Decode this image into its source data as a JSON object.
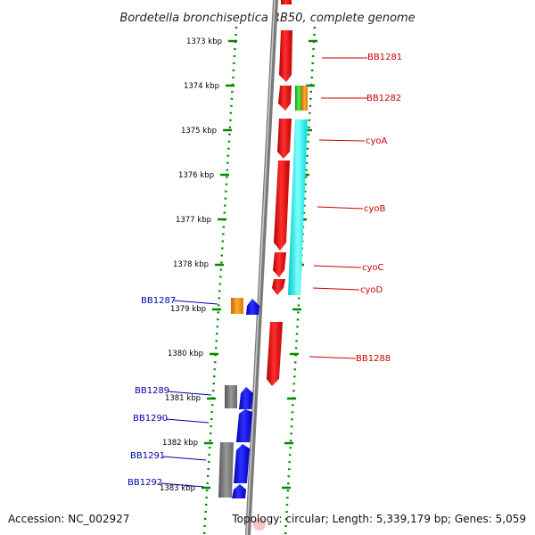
{
  "title": "Bordetella bronchiseptica RB50, complete genome",
  "footer": {
    "accession": "Accession: NC_002927",
    "topology": "Topology: circular; Length: 5,339,179 bp; Genes: 5,059"
  },
  "ruler": {
    "unit": "kbp",
    "ticks": [
      "1373 kbp",
      "1374 kbp",
      "1375 kbp",
      "1376 kbp",
      "1377 kbp",
      "1378 kbp",
      "1379 kbp",
      "1380 kbp",
      "1381 kbp",
      "1382 kbp",
      "1383 kbp"
    ]
  },
  "genes": [
    {
      "name": "BB1281",
      "strand": "forward",
      "color": "#cc0000"
    },
    {
      "name": "BB1282",
      "strand": "forward",
      "color": "#cc0000"
    },
    {
      "name": "cyoA",
      "strand": "forward",
      "color": "#cc0000"
    },
    {
      "name": "cyoB",
      "strand": "forward",
      "color": "#cc0000"
    },
    {
      "name": "cyoC",
      "strand": "forward",
      "color": "#cc0000"
    },
    {
      "name": "cyoD",
      "strand": "forward",
      "color": "#cc0000"
    },
    {
      "name": "BB1287",
      "strand": "reverse",
      "color": "#0000aa"
    },
    {
      "name": "BB1288",
      "strand": "forward",
      "color": "#cc0000"
    },
    {
      "name": "BB1289",
      "strand": "reverse",
      "color": "#0000aa"
    },
    {
      "name": "BB1290",
      "strand": "reverse",
      "color": "#0000aa"
    },
    {
      "name": "BB1291",
      "strand": "reverse",
      "color": "#0000aa"
    },
    {
      "name": "BB1292",
      "strand": "reverse",
      "color": "#0000aa"
    }
  ],
  "colors": {
    "forward_gene": "#ff0000",
    "reverse_gene": "#0000ff",
    "orange_feature": "#ff8800",
    "green_feature": "#22cc22",
    "cyan_feature": "#00ffff",
    "gray_feature": "#777777",
    "backbone": "#888888",
    "ruler_dots": "#008800"
  }
}
